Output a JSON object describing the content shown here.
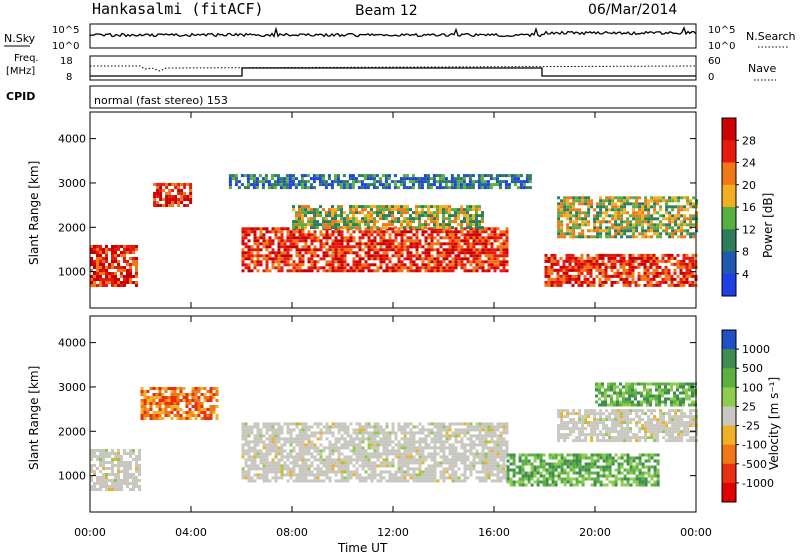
{
  "header": {
    "station": "Hankasalmi (fitACF)",
    "beam": "Beam 12",
    "date": "06/Mar/2014"
  },
  "aux": {
    "nsky_label": "N.Sky",
    "nsky_ticks": [
      "10^5",
      "10^0"
    ],
    "nsearch_label": "N.Search",
    "freq_label_line1": "Freq.",
    "freq_label_line2": "[MHz]",
    "freq_ticks": [
      "18",
      "8"
    ],
    "nave_label": "Nave",
    "nave_ticks": [
      "60",
      "0"
    ],
    "cpid_label": "CPID",
    "cpid_text": "normal (fast stereo) 153"
  },
  "chart_data": [
    {
      "type": "heatmap",
      "panel": "power",
      "ylabel": "Slant Range [km]",
      "ylim": [
        180,
        4600
      ],
      "yticks": [
        1000,
        2000,
        3000,
        4000
      ],
      "x_tick_labels": [
        "00:00",
        "04:00",
        "08:00",
        "12:00",
        "16:00",
        "20:00",
        "00:00"
      ],
      "colorbar": {
        "label": "Power [dB]",
        "ticks": [
          "4",
          "8",
          "12",
          "16",
          "20",
          "24",
          "28"
        ],
        "colors": [
          "#1f3fe6",
          "#1f58b0",
          "#2f7c5a",
          "#55b040",
          "#f0b020",
          "#f07818",
          "#e81a10",
          "#cc0000"
        ]
      },
      "echo_bands": [
        {
          "t_start": 0.0,
          "t_end": 1.8,
          "r_low": 700,
          "r_high": 1600,
          "level": "strong"
        },
        {
          "t_start": 2.5,
          "t_end": 4.0,
          "r_low": 2500,
          "r_high": 3000,
          "level": "strong"
        },
        {
          "t_start": 6.0,
          "t_end": 16.5,
          "r_low": 1000,
          "r_high": 2000,
          "level": "strong"
        },
        {
          "t_start": 8.0,
          "t_end": 15.5,
          "r_low": 2000,
          "r_high": 2500,
          "level": "medium"
        },
        {
          "t_start": 5.5,
          "t_end": 17.5,
          "r_low": 2900,
          "r_high": 3200,
          "level": "weak"
        },
        {
          "t_start": 18.0,
          "t_end": 24.0,
          "r_low": 700,
          "r_high": 1400,
          "level": "strong"
        },
        {
          "t_start": 18.5,
          "t_end": 24.0,
          "r_low": 1800,
          "r_high": 2700,
          "level": "medium"
        }
      ]
    },
    {
      "type": "heatmap",
      "panel": "velocity",
      "ylabel": "Slant Range [km]",
      "ylim": [
        180,
        4600
      ],
      "yticks": [
        1000,
        2000,
        3000,
        4000
      ],
      "x_tick_labels": [
        "00:00",
        "04:00",
        "08:00",
        "12:00",
        "16:00",
        "20:00",
        "00:00"
      ],
      "xlabel": "Time UT",
      "colorbar": {
        "label": "Velocity [m s⁻¹]",
        "ticks": [
          "1000",
          "500",
          "100",
          "25",
          "-25",
          "-100",
          "-500",
          "-1000"
        ],
        "colors": [
          "#1f50c8",
          "#3e8c50",
          "#5bb040",
          "#8ecc50",
          "#c8c8c0",
          "#f0b028",
          "#f07818",
          "#e83010",
          "#e00000"
        ]
      },
      "echo_bands": [
        {
          "t_start": 0.0,
          "t_end": 2.0,
          "r_low": 700,
          "r_high": 1600,
          "level": "groundscatter"
        },
        {
          "t_start": 6.0,
          "t_end": 16.5,
          "r_low": 900,
          "r_high": 2200,
          "level": "groundscatter"
        },
        {
          "t_start": 16.5,
          "t_end": 22.5,
          "r_low": 800,
          "r_high": 1500,
          "level": "positive"
        },
        {
          "t_start": 18.5,
          "t_end": 24.0,
          "r_low": 1800,
          "r_high": 2500,
          "level": "groundscatter"
        },
        {
          "t_start": 2.0,
          "t_end": 5.0,
          "r_low": 2300,
          "r_high": 3000,
          "level": "negative"
        },
        {
          "t_start": 20.0,
          "t_end": 24.0,
          "r_low": 2600,
          "r_high": 3100,
          "level": "positive"
        }
      ]
    }
  ]
}
